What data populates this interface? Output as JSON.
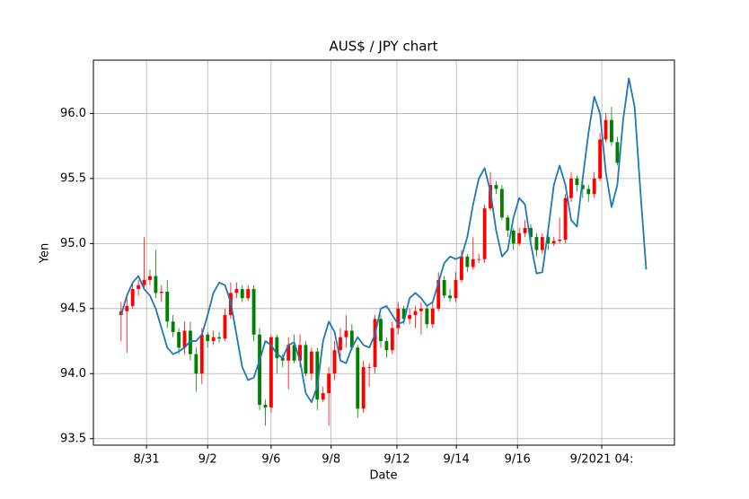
{
  "chart_data": {
    "type": "candlestick",
    "title": "AUS$ / JPY chart",
    "x_label": "Date",
    "y_label": "Yen",
    "grid": true,
    "up_color": "red",
    "down_color": "green",
    "open": [
      94.45,
      94.48,
      94.52,
      94.65,
      94.68,
      94.72,
      94.75,
      94.62,
      94.63,
      94.4,
      94.32,
      94.2,
      94.33,
      94.15,
      94.0,
      94.3,
      94.25,
      94.28,
      94.27,
      94.45,
      94.62,
      94.65,
      94.58,
      94.65,
      94.3,
      93.76,
      93.74,
      94.28,
      94.12,
      94.1,
      94.22,
      94.1,
      94.22,
      94.0,
      94.17,
      93.8,
      93.85,
      94.0,
      94.18,
      94.28,
      94.33,
      94.2,
      93.73,
      94.05,
      94.05,
      94.42,
      94.25,
      94.18,
      94.35,
      94.5,
      94.42,
      94.45,
      94.48,
      94.5,
      94.38,
      94.5,
      94.72,
      94.6,
      94.58,
      94.72,
      94.9,
      94.82,
      94.88,
      94.88,
      95.27,
      95.45,
      95.42,
      95.2,
      95.1,
      95.0,
      95.08,
      95.12,
      95.05,
      94.95,
      95.05,
      95.0,
      95.02,
      95.03,
      95.35,
      95.5,
      95.45,
      95.42,
      95.38,
      95.5,
      95.8,
      95.95,
      95.78
    ],
    "high": [
      94.55,
      94.6,
      94.7,
      94.72,
      95.05,
      94.8,
      94.95,
      94.68,
      94.72,
      94.45,
      94.35,
      94.4,
      94.4,
      94.2,
      94.35,
      94.32,
      94.33,
      94.32,
      94.5,
      94.7,
      94.7,
      94.68,
      94.68,
      94.68,
      94.35,
      93.8,
      94.3,
      94.3,
      94.15,
      94.28,
      94.3,
      94.3,
      94.25,
      94.2,
      94.2,
      93.9,
      94.05,
      94.25,
      94.35,
      94.45,
      94.38,
      94.22,
      94.1,
      94.08,
      94.45,
      94.45,
      94.28,
      94.4,
      94.55,
      94.52,
      94.5,
      94.52,
      94.55,
      94.52,
      94.55,
      94.78,
      94.75,
      94.65,
      94.78,
      94.95,
      94.92,
      95.05,
      94.92,
      95.3,
      95.55,
      95.48,
      95.45,
      95.22,
      95.12,
      95.12,
      95.18,
      95.15,
      95.08,
      95.08,
      95.08,
      95.05,
      95.2,
      95.38,
      95.55,
      95.52,
      95.48,
      95.45,
      95.55,
      95.85,
      96.0,
      96.05,
      95.82
    ],
    "low": [
      94.25,
      94.16,
      94.5,
      94.6,
      94.65,
      94.68,
      94.58,
      94.55,
      94.35,
      94.28,
      94.15,
      94.15,
      94.1,
      93.86,
      93.92,
      94.2,
      94.22,
      94.24,
      94.25,
      94.42,
      94.58,
      94.55,
      94.56,
      94.25,
      93.72,
      93.6,
      93.7,
      94.0,
      94.05,
      93.88,
      94.08,
      94.05,
      93.98,
      93.95,
      93.72,
      93.78,
      93.6,
      93.95,
      94.1,
      94.2,
      94.18,
      93.66,
      93.7,
      93.9,
      94.0,
      94.2,
      94.12,
      94.15,
      94.3,
      94.38,
      94.38,
      94.35,
      94.3,
      94.35,
      94.35,
      94.48,
      94.58,
      94.55,
      94.55,
      94.7,
      94.78,
      94.8,
      94.85,
      94.85,
      95.25,
      95.38,
      95.18,
      95.05,
      94.95,
      94.98,
      95.05,
      95.02,
      94.9,
      94.92,
      94.95,
      94.98,
      95.0,
      95.0,
      95.32,
      95.4,
      95.35,
      95.32,
      95.35,
      95.48,
      95.78,
      95.75,
      95.6
    ],
    "close": [
      94.48,
      94.52,
      94.65,
      94.68,
      94.72,
      94.75,
      94.62,
      94.63,
      94.4,
      94.32,
      94.2,
      94.33,
      94.15,
      94.0,
      94.3,
      94.25,
      94.28,
      94.27,
      94.45,
      94.62,
      94.65,
      94.58,
      94.65,
      94.3,
      93.76,
      93.74,
      94.28,
      94.12,
      94.1,
      94.22,
      94.1,
      94.22,
      94.0,
      94.17,
      93.8,
      93.85,
      94.0,
      94.18,
      94.28,
      94.33,
      94.2,
      93.73,
      94.05,
      94.05,
      94.42,
      94.25,
      94.18,
      94.35,
      94.5,
      94.42,
      94.45,
      94.48,
      94.5,
      94.38,
      94.5,
      94.72,
      94.6,
      94.58,
      94.72,
      94.9,
      94.82,
      94.88,
      94.88,
      95.27,
      95.45,
      95.42,
      95.2,
      95.1,
      95.0,
      95.08,
      95.12,
      95.05,
      94.95,
      95.05,
      95.0,
      95.02,
      95.03,
      95.35,
      95.5,
      95.45,
      95.42,
      95.38,
      95.5,
      95.8,
      95.95,
      95.78,
      95.62
    ],
    "line": {
      "color": "#1f77b4",
      "values": [
        94.45,
        94.6,
        94.7,
        94.75,
        94.65,
        94.6,
        94.5,
        94.35,
        94.2,
        94.15,
        94.17,
        94.2,
        94.25,
        94.25,
        94.3,
        94.45,
        94.62,
        94.7,
        94.68,
        94.55,
        94.3,
        94.05,
        93.95,
        93.97,
        94.1,
        94.25,
        94.22,
        94.15,
        94.12,
        94.22,
        94.24,
        94.1,
        93.85,
        93.78,
        93.9,
        94.25,
        94.4,
        94.32,
        94.1,
        94.08,
        94.2,
        94.28,
        94.22,
        94.2,
        94.3,
        94.5,
        94.52,
        94.45,
        94.38,
        94.4,
        94.58,
        94.62,
        94.58,
        94.52,
        94.55,
        94.7,
        94.85,
        94.9,
        94.88,
        94.9,
        95.05,
        95.3,
        95.5,
        95.58,
        95.4,
        95.1,
        94.9,
        94.95,
        95.2,
        95.35,
        95.3,
        95.0,
        94.77,
        94.78,
        95.1,
        95.45,
        95.6,
        95.45,
        95.18,
        95.13,
        95.5,
        95.85,
        96.13,
        96.0,
        95.55,
        95.28,
        95.45,
        95.95,
        96.27,
        96.05,
        95.4,
        94.8
      ]
    },
    "xlim": [
      -4.8,
      95.9
    ],
    "xticks": [
      {
        "value": 4.4,
        "label": "8/31"
      },
      {
        "value": 15,
        "label": "9/2"
      },
      {
        "value": 26,
        "label": "9/6"
      },
      {
        "value": 36.4,
        "label": "9/8"
      },
      {
        "value": 47.8,
        "label": "9/12"
      },
      {
        "value": 58.1,
        "label": "9/14"
      },
      {
        "value": 68.7,
        "label": "9/16"
      },
      {
        "value": 83.3,
        "label": "9/2021 04:"
      }
    ],
    "ylim": [
      93.45,
      96.41
    ],
    "yticks": [
      93.5,
      {
        "value": 94,
        "label": "94.0"
      },
      94.5,
      {
        "value": 95,
        "label": "95.0"
      },
      95.5,
      {
        "value": 96,
        "label": "96.0"
      }
    ]
  }
}
